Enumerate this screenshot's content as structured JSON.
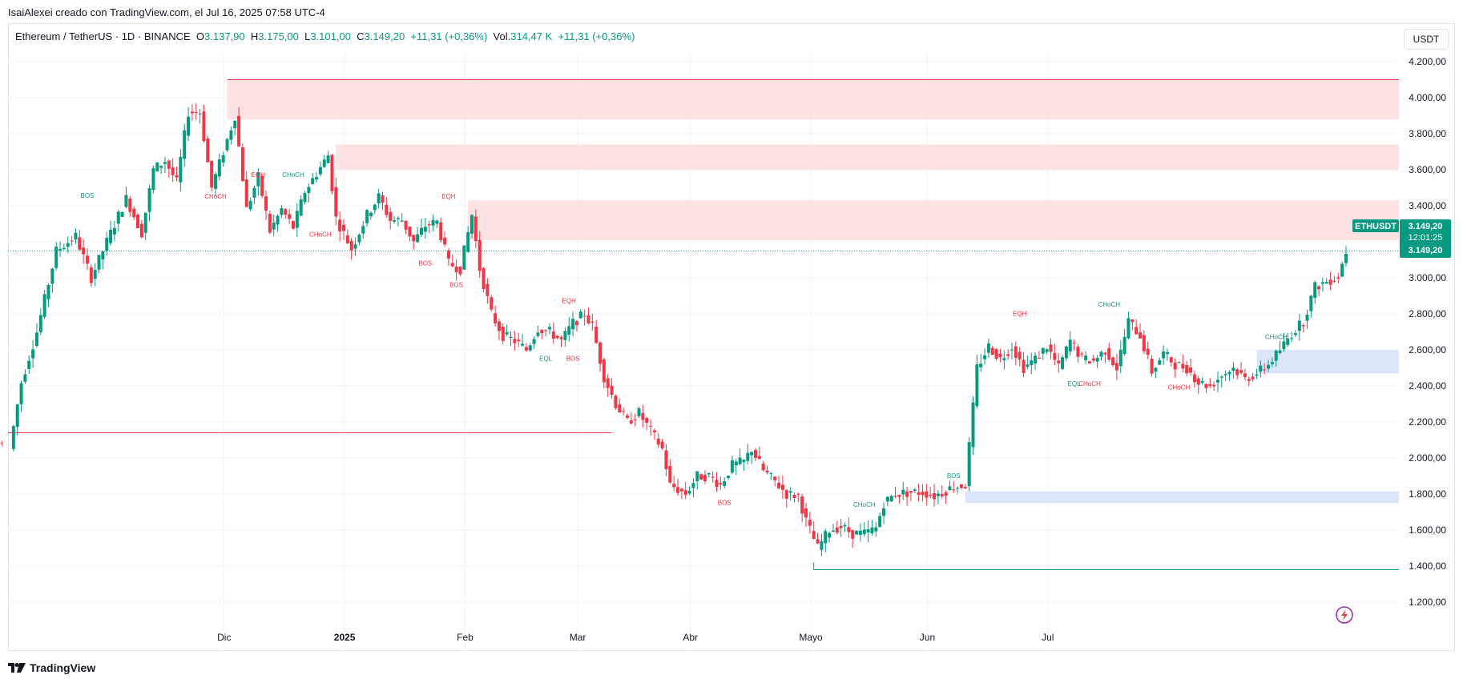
{
  "header": {
    "attribution": "IsaiAlexei creado con TradingView.com, el Jul 16, 2025 07:58 UTC-4"
  },
  "legend": {
    "symbol": "Ethereum / TetherUS · 1D · BINANCE",
    "o_label": "O",
    "o_value": "3.137,90",
    "h_label": "H",
    "h_value": "3.175,00",
    "l_label": "L",
    "l_value": "3.101,00",
    "c_label": "C",
    "c_value": "3.149,20",
    "change": "+11,31 (+0,36%)",
    "vol_label": "Vol.",
    "vol_value": "314,47 K",
    "vol_change": "+11,31 (+0,36%)"
  },
  "toolbar": {
    "currency": "USDT"
  },
  "footer": {
    "brand": "TradingView"
  },
  "colors": {
    "up": "#089981",
    "down": "#f23645",
    "supply_zone": "#fde2e3",
    "demand_zone": "#dce6fb",
    "grid": "#f0f3fa"
  },
  "icons": {
    "replay": "lightning-icon",
    "logo": "tradingview-logo-icon"
  },
  "chart_data": {
    "type": "candlestick",
    "symbol": "ETHUSDT",
    "ylim": [
      1100,
      4250
    ],
    "y_ticks": [
      "4.200,00",
      "4.000,00",
      "3.800,00",
      "3.600,00",
      "3.400,00",
      "3.200,00",
      "3.000,00",
      "2.800,00",
      "2.600,00",
      "2.400,00",
      "2.200,00",
      "2.000,00",
      "1.800,00",
      "1.600,00",
      "1.400,00",
      "1.200,00"
    ],
    "x_ticks": [
      "Dic",
      "2025",
      "Feb",
      "Mar",
      "Abr",
      "Mayo",
      "Jun",
      "Jul"
    ],
    "last_price_label": {
      "symbol": "ETHUSDT",
      "price": "3.149,20",
      "countdown": "12:01:25",
      "price2": "3.149,20",
      "value": 3149.2
    },
    "path": [
      [
        0,
        2050
      ],
      [
        3,
        2420
      ],
      [
        7,
        2700
      ],
      [
        12,
        3150
      ],
      [
        17,
        3230
      ],
      [
        21,
        3000
      ],
      [
        26,
        3250
      ],
      [
        30,
        3440
      ],
      [
        34,
        3250
      ],
      [
        37,
        3600
      ],
      [
        40,
        3650
      ],
      [
        43,
        3530
      ],
      [
        46,
        3920
      ],
      [
        49,
        3920
      ],
      [
        52,
        3500
      ],
      [
        55,
        3700
      ],
      [
        58,
        3900
      ],
      [
        61,
        3380
      ],
      [
        64,
        3560
      ],
      [
        67,
        3260
      ],
      [
        70,
        3380
      ],
      [
        73,
        3280
      ],
      [
        76,
        3480
      ],
      [
        79,
        3580
      ],
      [
        82,
        3680
      ],
      [
        84,
        3330
      ],
      [
        88,
        3160
      ],
      [
        92,
        3350
      ],
      [
        95,
        3450
      ],
      [
        98,
        3320
      ],
      [
        101,
        3320
      ],
      [
        104,
        3200
      ],
      [
        107,
        3290
      ],
      [
        110,
        3310
      ],
      [
        113,
        3080
      ],
      [
        116,
        3050
      ],
      [
        119,
        3350
      ],
      [
        121,
        3050
      ],
      [
        124,
        2800
      ],
      [
        127,
        2680
      ],
      [
        130,
        2650
      ],
      [
        133,
        2600
      ],
      [
        136,
        2720
      ],
      [
        139,
        2700
      ],
      [
        142,
        2650
      ],
      [
        145,
        2750
      ],
      [
        148,
        2800
      ],
      [
        150,
        2730
      ],
      [
        153,
        2450
      ],
      [
        156,
        2300
      ],
      [
        159,
        2200
      ],
      [
        162,
        2250
      ],
      [
        165,
        2150
      ],
      [
        168,
        2050
      ],
      [
        170,
        1850
      ],
      [
        174,
        1800
      ],
      [
        177,
        1900
      ],
      [
        180,
        1900
      ],
      [
        183,
        1850
      ],
      [
        186,
        1960
      ],
      [
        189,
        1980
      ],
      [
        191,
        2050
      ],
      [
        194,
        1930
      ],
      [
        197,
        1870
      ],
      [
        200,
        1800
      ],
      [
        203,
        1790
      ],
      [
        205,
        1650
      ],
      [
        208,
        1500
      ],
      [
        211,
        1600
      ],
      [
        214,
        1620
      ],
      [
        217,
        1580
      ],
      [
        220,
        1580
      ],
      [
        223,
        1610
      ],
      [
        225,
        1750
      ],
      [
        228,
        1800
      ],
      [
        232,
        1810
      ],
      [
        235,
        1810
      ],
      [
        238,
        1790
      ],
      [
        241,
        1820
      ],
      [
        243,
        1840
      ],
      [
        246,
        1850
      ],
      [
        249,
        2500
      ],
      [
        252,
        2620
      ],
      [
        255,
        2550
      ],
      [
        258,
        2620
      ],
      [
        261,
        2500
      ],
      [
        264,
        2550
      ],
      [
        267,
        2620
      ],
      [
        270,
        2500
      ],
      [
        273,
        2650
      ],
      [
        276,
        2550
      ],
      [
        279,
        2540
      ],
      [
        282,
        2600
      ],
      [
        285,
        2500
      ],
      [
        288,
        2760
      ],
      [
        291,
        2680
      ],
      [
        294,
        2480
      ],
      [
        297,
        2580
      ],
      [
        300,
        2520
      ],
      [
        303,
        2500
      ],
      [
        306,
        2420
      ],
      [
        309,
        2400
      ],
      [
        312,
        2460
      ],
      [
        315,
        2500
      ],
      [
        318,
        2440
      ],
      [
        321,
        2470
      ],
      [
        324,
        2520
      ],
      [
        327,
        2600
      ],
      [
        330,
        2690
      ],
      [
        333,
        2760
      ],
      [
        336,
        2950
      ],
      [
        339,
        2980
      ],
      [
        342,
        3010
      ],
      [
        344,
        3149.2
      ]
    ],
    "supply_zones": [
      {
        "from_index": 56,
        "y_top": 4100,
        "y_bottom": 3880,
        "label": ""
      },
      {
        "from_index": 84,
        "y_top": 3740,
        "y_bottom": 3600,
        "label": ""
      },
      {
        "from_index": 118,
        "y_top": 3430,
        "y_bottom": 3210,
        "label": ""
      }
    ],
    "demand_zones": [
      {
        "from_index": 321,
        "y_top": 2600,
        "y_bottom": 2470,
        "label": ""
      },
      {
        "from_index": 246,
        "y_top": 1815,
        "y_bottom": 1750,
        "label": ""
      }
    ],
    "horizontal_lines": [
      {
        "from_index": 0,
        "to_index": 155,
        "y": 2140,
        "color": "#f23645",
        "label": "CHoCH"
      },
      {
        "from_index": 207,
        "to_index": 355,
        "y": 1380,
        "color": "#089981",
        "label": ""
      }
    ],
    "annotations": [
      {
        "text": "BOS",
        "x": 20,
        "y": 3445,
        "color": "#089981"
      },
      {
        "text": "EQH",
        "x": 64,
        "y": 3560,
        "color": "#f23645"
      },
      {
        "text": "CHoCH",
        "x": 53,
        "y": 3440,
        "color": "#f23645"
      },
      {
        "text": "CHoCH",
        "x": 73,
        "y": 3560,
        "color": "#089981"
      },
      {
        "text": "CHoCH",
        "x": 80,
        "y": 3230,
        "color": "#f23645"
      },
      {
        "text": "EQH",
        "x": 113,
        "y": 3440,
        "color": "#f23645"
      },
      {
        "text": "BOS",
        "x": 107,
        "y": 3070,
        "color": "#f23645"
      },
      {
        "text": "BOS",
        "x": 115,
        "y": 2950,
        "color": "#f23645"
      },
      {
        "text": "EQH",
        "x": 144,
        "y": 2860,
        "color": "#f23645"
      },
      {
        "text": "EQL",
        "x": 138,
        "y": 2540,
        "color": "#089981"
      },
      {
        "text": "BOS",
        "x": 145,
        "y": 2540,
        "color": "#f23645"
      },
      {
        "text": "BOS",
        "x": 184,
        "y": 1740,
        "color": "#f23645"
      },
      {
        "text": "CHoCH",
        "x": 220,
        "y": 1730,
        "color": "#089981"
      },
      {
        "text": "BOS",
        "x": 243,
        "y": 1890,
        "color": "#089981"
      },
      {
        "text": "EQH",
        "x": 260,
        "y": 2790,
        "color": "#f23645"
      },
      {
        "text": "CHoCH",
        "x": 283,
        "y": 2840,
        "color": "#089981"
      },
      {
        "text": "EQL",
        "x": 274,
        "y": 2400,
        "color": "#089981"
      },
      {
        "text": "CHoCH",
        "x": 278,
        "y": 2400,
        "color": "#f23645"
      },
      {
        "text": "CHoCH",
        "x": 301,
        "y": 2380,
        "color": "#f23645"
      },
      {
        "text": "CHoCH",
        "x": 326,
        "y": 2660,
        "color": "#089981"
      }
    ]
  }
}
